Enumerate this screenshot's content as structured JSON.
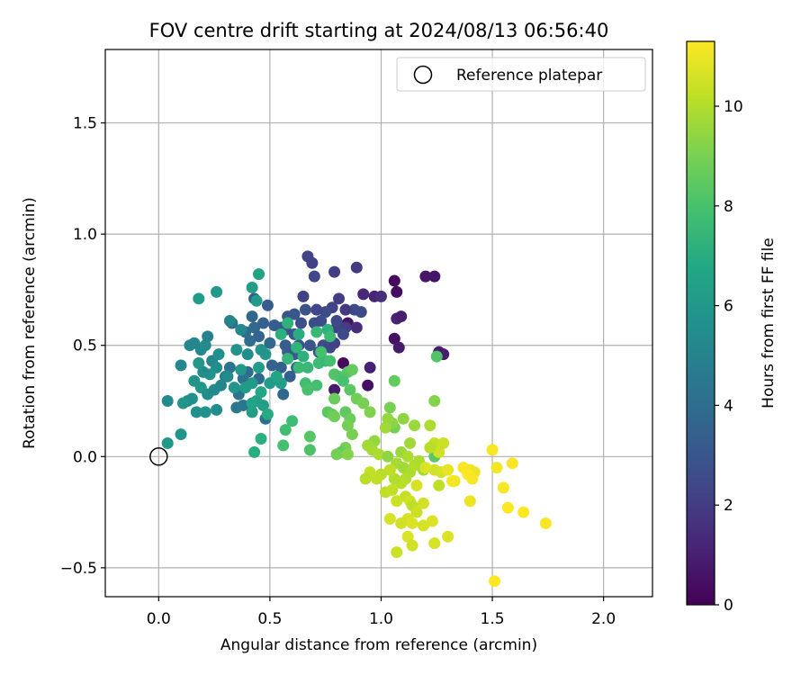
{
  "chart_data": {
    "type": "scatter",
    "title": "FOV centre drift starting at 2024/08/13 06:56:40",
    "xlabel": "Angular distance from reference (arcmin)",
    "ylabel": "Rotation from reference (arcmin)",
    "xlim": [
      -0.24,
      2.22
    ],
    "ylim": [
      -0.63,
      1.83
    ],
    "xticks": [
      0.0,
      0.5,
      1.0,
      1.5,
      2.0
    ],
    "xtick_labels": [
      "0.0",
      "0.5",
      "1.0",
      "1.5",
      "2.0"
    ],
    "yticks": [
      -0.5,
      0.0,
      0.5,
      1.0,
      1.5
    ],
    "ytick_labels": [
      "−0.5",
      "0.0",
      "0.5",
      "1.0",
      "1.5"
    ],
    "grid": true,
    "legend": {
      "position": "top-right",
      "entries": [
        "Reference platepar"
      ]
    },
    "reference_point": {
      "x": 0.0,
      "y": 0.0,
      "marker": "open-circle"
    },
    "colorbar": {
      "label": "Hours from first FF file",
      "range": [
        0,
        11.3
      ],
      "ticks": [
        0,
        2,
        4,
        6,
        8,
        10
      ],
      "tick_labels": [
        "0",
        "2",
        "4",
        "6",
        "8",
        "10"
      ],
      "colormap": "viridis"
    },
    "points": [
      [
        0.83,
        0.42,
        0.3
      ],
      [
        0.94,
        0.32,
        0.5
      ],
      [
        0.79,
        0.3,
        0.8
      ],
      [
        0.95,
        0.4,
        1.0
      ],
      [
        0.85,
        0.6,
        0.6
      ],
      [
        1.2,
        0.81,
        0.7
      ],
      [
        1.24,
        0.81,
        0.6
      ],
      [
        1.26,
        0.47,
        0.9
      ],
      [
        1.28,
        0.46,
        0.9
      ],
      [
        1.06,
        0.53,
        0.5
      ],
      [
        1.07,
        0.62,
        1.1
      ],
      [
        1.09,
        0.63,
        0.9
      ],
      [
        1.07,
        0.74,
        0.4
      ],
      [
        1.06,
        0.79,
        0.3
      ],
      [
        1.08,
        0.49,
        0.8
      ],
      [
        0.97,
        0.72,
        1.2
      ],
      [
        1.0,
        0.72,
        1.5
      ],
      [
        0.92,
        0.73,
        1.3
      ],
      [
        0.89,
        0.58,
        1.4
      ],
      [
        0.67,
        0.9,
        2.3
      ],
      [
        0.69,
        0.87,
        2.2
      ],
      [
        0.7,
        0.81,
        2.4
      ],
      [
        0.79,
        0.83,
        2.0
      ],
      [
        0.89,
        0.85,
        1.9
      ],
      [
        0.91,
        0.65,
        2.6
      ],
      [
        0.88,
        0.66,
        2.5
      ],
      [
        0.84,
        0.58,
        2.0
      ],
      [
        0.8,
        0.58,
        2.2
      ],
      [
        0.78,
        0.67,
        2.3
      ],
      [
        0.81,
        0.71,
        2.0
      ],
      [
        0.75,
        0.65,
        2.6
      ],
      [
        0.73,
        0.61,
        2.7
      ],
      [
        0.71,
        0.66,
        2.4
      ],
      [
        0.66,
        0.66,
        2.9
      ],
      [
        0.64,
        0.6,
        2.7
      ],
      [
        0.65,
        0.72,
        2.2
      ],
      [
        0.61,
        0.64,
        3.0
      ],
      [
        0.58,
        0.63,
        3.1
      ],
      [
        0.55,
        0.58,
        3.2
      ],
      [
        0.57,
        0.57,
        2.9
      ],
      [
        0.61,
        0.55,
        3.0
      ],
      [
        0.63,
        0.5,
        2.8
      ],
      [
        0.58,
        0.47,
        3.3
      ],
      [
        0.68,
        0.5,
        3.0
      ],
      [
        0.72,
        0.47,
        2.7
      ],
      [
        0.74,
        0.5,
        2.6
      ],
      [
        0.77,
        0.49,
        2.4
      ],
      [
        0.79,
        0.51,
        2.2
      ],
      [
        0.84,
        0.66,
        1.9
      ],
      [
        0.8,
        0.61,
        2.5
      ],
      [
        0.83,
        0.55,
        2.6
      ],
      [
        0.76,
        0.57,
        2.8
      ],
      [
        0.7,
        0.6,
        2.6
      ],
      [
        0.62,
        0.4,
        3.5
      ],
      [
        0.55,
        0.4,
        3.4
      ],
      [
        0.59,
        0.36,
        3.4
      ],
      [
        0.51,
        0.41,
        3.6
      ],
      [
        0.45,
        0.35,
        3.9
      ],
      [
        0.4,
        0.38,
        4.0
      ],
      [
        0.38,
        0.35,
        4.2
      ],
      [
        0.36,
        0.28,
        4.3
      ],
      [
        0.38,
        0.23,
        4.4
      ],
      [
        0.35,
        0.22,
        4.5
      ],
      [
        0.32,
        0.4,
        4.3
      ],
      [
        0.3,
        0.36,
        4.6
      ],
      [
        0.33,
        0.6,
        4.1
      ],
      [
        0.39,
        0.56,
        3.9
      ],
      [
        0.42,
        0.63,
        3.7
      ],
      [
        0.43,
        0.58,
        3.8
      ],
      [
        0.45,
        0.54,
        3.6
      ],
      [
        0.41,
        0.52,
        4.0
      ],
      [
        0.47,
        0.6,
        3.5
      ],
      [
        0.52,
        0.59,
        3.3
      ],
      [
        0.5,
        0.51,
        3.8
      ],
      [
        0.56,
        0.28,
        3.8
      ],
      [
        0.48,
        0.17,
        4.1
      ],
      [
        0.43,
        0.71,
        3.5
      ],
      [
        0.49,
        0.68,
        3.3
      ],
      [
        0.57,
        0.5,
        3.3
      ],
      [
        0.61,
        0.46,
        3.2
      ],
      [
        0.16,
        0.51,
        5.2
      ],
      [
        0.14,
        0.5,
        5.1
      ],
      [
        0.19,
        0.48,
        5.3
      ],
      [
        0.21,
        0.5,
        5.4
      ],
      [
        0.22,
        0.54,
        5.0
      ],
      [
        0.24,
        0.43,
        5.2
      ],
      [
        0.27,
        0.46,
        5.6
      ],
      [
        0.26,
        0.4,
        5.5
      ],
      [
        0.23,
        0.37,
        5.7
      ],
      [
        0.2,
        0.38,
        5.4
      ],
      [
        0.18,
        0.42,
        5.9
      ],
      [
        0.16,
        0.34,
        5.8
      ],
      [
        0.19,
        0.31,
        5.9
      ],
      [
        0.22,
        0.28,
        5.5
      ],
      [
        0.25,
        0.3,
        5.3
      ],
      [
        0.28,
        0.32,
        5.1
      ],
      [
        0.26,
        0.21,
        5.5
      ],
      [
        0.17,
        0.2,
        5.6
      ],
      [
        0.21,
        0.2,
        5.7
      ],
      [
        0.13,
        0.25,
        5.5
      ],
      [
        0.15,
        0.26,
        5.6
      ],
      [
        0.11,
        0.24,
        5.8
      ],
      [
        0.04,
        0.25,
        5.4
      ],
      [
        0.1,
        0.41,
        5.2
      ],
      [
        0.1,
        0.1,
        5.8
      ],
      [
        0.04,
        0.06,
        6.0
      ],
      [
        0.18,
        0.71,
        6.2
      ],
      [
        0.26,
        0.74,
        6.0
      ],
      [
        0.32,
        0.61,
        5.1
      ],
      [
        0.37,
        0.57,
        5.3
      ],
      [
        0.35,
        0.48,
        5.7
      ],
      [
        0.37,
        0.39,
        6.0
      ],
      [
        0.39,
        0.31,
        6.2
      ],
      [
        0.34,
        0.31,
        5.8
      ],
      [
        0.31,
        0.36,
        5.4
      ],
      [
        0.42,
        0.33,
        6.1
      ],
      [
        0.44,
        0.25,
        6.4
      ],
      [
        0.42,
        0.2,
        6.3
      ],
      [
        0.47,
        0.23,
        6.3
      ],
      [
        0.42,
        0.24,
        6.5
      ],
      [
        0.45,
        0.4,
        6.2
      ],
      [
        0.48,
        0.46,
        6.0
      ],
      [
        0.46,
        0.48,
        5.8
      ],
      [
        0.4,
        0.46,
        5.5
      ],
      [
        0.44,
        0.7,
        6.1
      ],
      [
        0.45,
        0.82,
        6.5
      ],
      [
        0.42,
        0.76,
        6.3
      ],
      [
        0.5,
        0.33,
        6.2
      ],
      [
        0.55,
        0.33,
        6.3
      ],
      [
        0.53,
        0.36,
        6.6
      ],
      [
        0.43,
        0.02,
        7.0
      ],
      [
        0.46,
        0.08,
        7.1
      ],
      [
        0.46,
        0.29,
        6.7
      ],
      [
        0.49,
        0.19,
        6.9
      ],
      [
        0.55,
        0.55,
        7.1
      ],
      [
        0.58,
        0.6,
        7.2
      ],
      [
        0.63,
        0.55,
        7.0
      ],
      [
        0.65,
        0.45,
        7.2
      ],
      [
        0.62,
        0.49,
        7.3
      ],
      [
        0.58,
        0.44,
        7.4
      ],
      [
        0.63,
        0.4,
        7.6
      ],
      [
        0.67,
        0.4,
        7.5
      ],
      [
        0.66,
        0.33,
        7.8
      ],
      [
        0.67,
        0.3,
        8.0
      ],
      [
        0.71,
        0.32,
        7.9
      ],
      [
        0.72,
        0.42,
        7.7
      ],
      [
        0.75,
        0.43,
        7.5
      ],
      [
        0.71,
        0.56,
        7.5
      ],
      [
        0.76,
        0.57,
        7.2
      ],
      [
        0.77,
        0.54,
        7.6
      ],
      [
        0.73,
        0.47,
        7.9
      ],
      [
        0.77,
        0.43,
        7.9
      ],
      [
        0.79,
        0.37,
        8.2
      ],
      [
        0.81,
        0.36,
        8.1
      ],
      [
        0.85,
        0.38,
        8.3
      ],
      [
        0.87,
        0.39,
        8.6
      ],
      [
        0.83,
        0.34,
        8.0
      ],
      [
        0.86,
        0.3,
        8.4
      ],
      [
        0.79,
        0.26,
        8.7
      ],
      [
        0.76,
        0.2,
        8.4
      ],
      [
        0.78,
        0.19,
        8.6
      ],
      [
        0.79,
        0.18,
        8.8
      ],
      [
        0.84,
        0.2,
        8.5
      ],
      [
        0.86,
        0.17,
        8.7
      ],
      [
        0.85,
        0.14,
        8.9
      ],
      [
        0.87,
        0.1,
        9.0
      ],
      [
        0.84,
        0.04,
        9.0
      ],
      [
        0.82,
        0.02,
        8.6
      ],
      [
        0.8,
        0.01,
        8.9
      ],
      [
        0.85,
        0.01,
        9.2
      ],
      [
        0.89,
        0.26,
        8.8
      ],
      [
        0.92,
        0.24,
        9.0
      ],
      [
        0.95,
        0.2,
        9.1
      ],
      [
        0.57,
        0.12,
        7.8
      ],
      [
        0.6,
        0.16,
        7.7
      ],
      [
        0.56,
        0.05,
        7.9
      ],
      [
        0.68,
        0.03,
        8.1
      ],
      [
        0.68,
        0.09,
        8.3
      ],
      [
        1.06,
        0.34,
        8.6
      ],
      [
        1.04,
        0.22,
        9.0
      ],
      [
        1.25,
        0.45,
        8.2
      ],
      [
        1.24,
        0.25,
        9.2
      ],
      [
        1.24,
        0.0,
        8.4
      ],
      [
        1.06,
        0.13,
        8.9
      ],
      [
        1.05,
        0.15,
        9.3
      ],
      [
        1.03,
        0.17,
        9.5
      ],
      [
        1.02,
        0.13,
        9.7
      ],
      [
        0.97,
        0.07,
        9.5
      ],
      [
        0.94,
        0.05,
        9.7
      ],
      [
        0.96,
        0.03,
        9.8
      ],
      [
        0.99,
        0.01,
        9.9
      ],
      [
        1.03,
        0.0,
        9.4
      ],
      [
        1.07,
        -0.03,
        9.8
      ],
      [
        1.09,
        0.02,
        9.6
      ],
      [
        1.12,
        0.0,
        9.9
      ],
      [
        1.1,
        -0.05,
        9.7
      ],
      [
        1.13,
        -0.07,
        9.9
      ],
      [
        1.11,
        -0.1,
        10.0
      ],
      [
        1.15,
        -0.04,
        10.0
      ],
      [
        1.17,
        -0.02,
        9.9
      ],
      [
        1.19,
        -0.06,
        9.8
      ],
      [
        1.09,
        -0.12,
        10.1
      ],
      [
        1.06,
        -0.1,
        10.0
      ],
      [
        1.04,
        -0.06,
        10.2
      ],
      [
        1.0,
        -0.08,
        10.1
      ],
      [
        0.98,
        -0.1,
        10.2
      ],
      [
        0.95,
        -0.07,
        10.3
      ],
      [
        0.93,
        -0.1,
        10.1
      ],
      [
        1.02,
        -0.16,
        10.2
      ],
      [
        1.05,
        -0.15,
        10.3
      ],
      [
        1.11,
        -0.18,
        10.3
      ],
      [
        1.13,
        -0.2,
        10.5
      ],
      [
        1.14,
        -0.22,
        10.2
      ],
      [
        1.16,
        -0.25,
        10.4
      ],
      [
        1.19,
        -0.21,
        10.5
      ],
      [
        1.12,
        -0.28,
        10.6
      ],
      [
        1.14,
        -0.3,
        10.7
      ],
      [
        1.07,
        -0.2,
        10.4
      ],
      [
        1.04,
        -0.28,
        10.6
      ],
      [
        1.09,
        -0.3,
        10.5
      ],
      [
        1.12,
        -0.36,
        10.7
      ],
      [
        1.14,
        -0.4,
        10.5
      ],
      [
        1.07,
        -0.43,
        10.4
      ],
      [
        1.19,
        -0.31,
        10.6
      ],
      [
        1.23,
        -0.29,
        10.7
      ],
      [
        1.24,
        -0.39,
        10.6
      ],
      [
        1.3,
        -0.36,
        10.7
      ],
      [
        1.24,
        0.06,
        10.3
      ],
      [
        1.22,
        0.14,
        9.9
      ],
      [
        1.26,
        0.02,
        10.5
      ],
      [
        1.28,
        0.06,
        10.4
      ],
      [
        1.22,
        0.04,
        10.1
      ],
      [
        1.24,
        -0.06,
        10.5
      ],
      [
        1.27,
        -0.07,
        10.6
      ],
      [
        1.2,
        -0.05,
        10.7
      ],
      [
        1.26,
        -0.13,
        10.2
      ],
      [
        1.16,
        -0.13,
        10.6
      ],
      [
        1.15,
        0.14,
        9.6
      ],
      [
        1.1,
        0.17,
        9.4
      ],
      [
        1.13,
        0.06,
        9.7
      ],
      [
        1.3,
        -0.06,
        10.9
      ],
      [
        1.33,
        -0.11,
        11.0
      ],
      [
        1.32,
        -0.11,
        11.1
      ],
      [
        1.37,
        -0.05,
        11.2
      ],
      [
        1.4,
        -0.06,
        11.1
      ],
      [
        1.42,
        -0.07,
        11.0
      ],
      [
        1.39,
        -0.08,
        11.3
      ],
      [
        1.41,
        -0.1,
        11.2
      ],
      [
        1.4,
        -0.2,
        11.0
      ],
      [
        1.5,
        0.03,
        11.2
      ],
      [
        1.52,
        -0.05,
        11.1
      ],
      [
        1.55,
        -0.14,
        11.2
      ],
      [
        1.57,
        -0.23,
        11.3
      ],
      [
        1.59,
        -0.03,
        11.2
      ],
      [
        1.64,
        -0.25,
        11.3
      ],
      [
        1.74,
        -0.3,
        11.2
      ],
      [
        1.51,
        -0.56,
        11.3
      ]
    ]
  }
}
